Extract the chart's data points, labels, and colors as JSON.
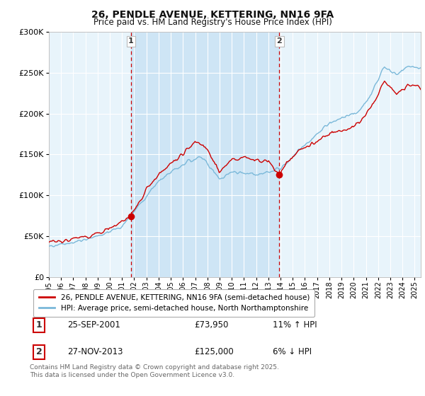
{
  "title_line1": "26, PENDLE AVENUE, KETTERING, NN16 9FA",
  "title_line2": "Price paid vs. HM Land Registry's House Price Index (HPI)",
  "legend_entry1": "26, PENDLE AVENUE, KETTERING, NN16 9FA (semi-detached house)",
  "legend_entry2": "HPI: Average price, semi-detached house, North Northamptonshire",
  "footnote": "Contains HM Land Registry data © Crown copyright and database right 2025.\nThis data is licensed under the Open Government Licence v3.0.",
  "sale1_label": "1",
  "sale1_date": "25-SEP-2001",
  "sale1_price": "£73,950",
  "sale1_hpi": "11% ↑ HPI",
  "sale2_label": "2",
  "sale2_date": "27-NOV-2013",
  "sale2_price": "£125,000",
  "sale2_hpi": "6% ↓ HPI",
  "color_house": "#cc0000",
  "color_hpi": "#7ab8d9",
  "color_background": "#e8f4fb",
  "color_shade": "#cce4f5",
  "ylim_min": 0,
  "ylim_max": 300000,
  "yticks": [
    0,
    50000,
    100000,
    150000,
    200000,
    250000,
    300000
  ],
  "ytick_labels": [
    "£0",
    "£50K",
    "£100K",
    "£150K",
    "£200K",
    "£250K",
    "£300K"
  ],
  "sale1_x": 2001.73,
  "sale1_y": 73950,
  "sale2_x": 2013.9,
  "sale2_y": 125000,
  "vline1_x": 2001.73,
  "vline2_x": 2013.9,
  "xmin": 1995.0,
  "xmax": 2025.5
}
